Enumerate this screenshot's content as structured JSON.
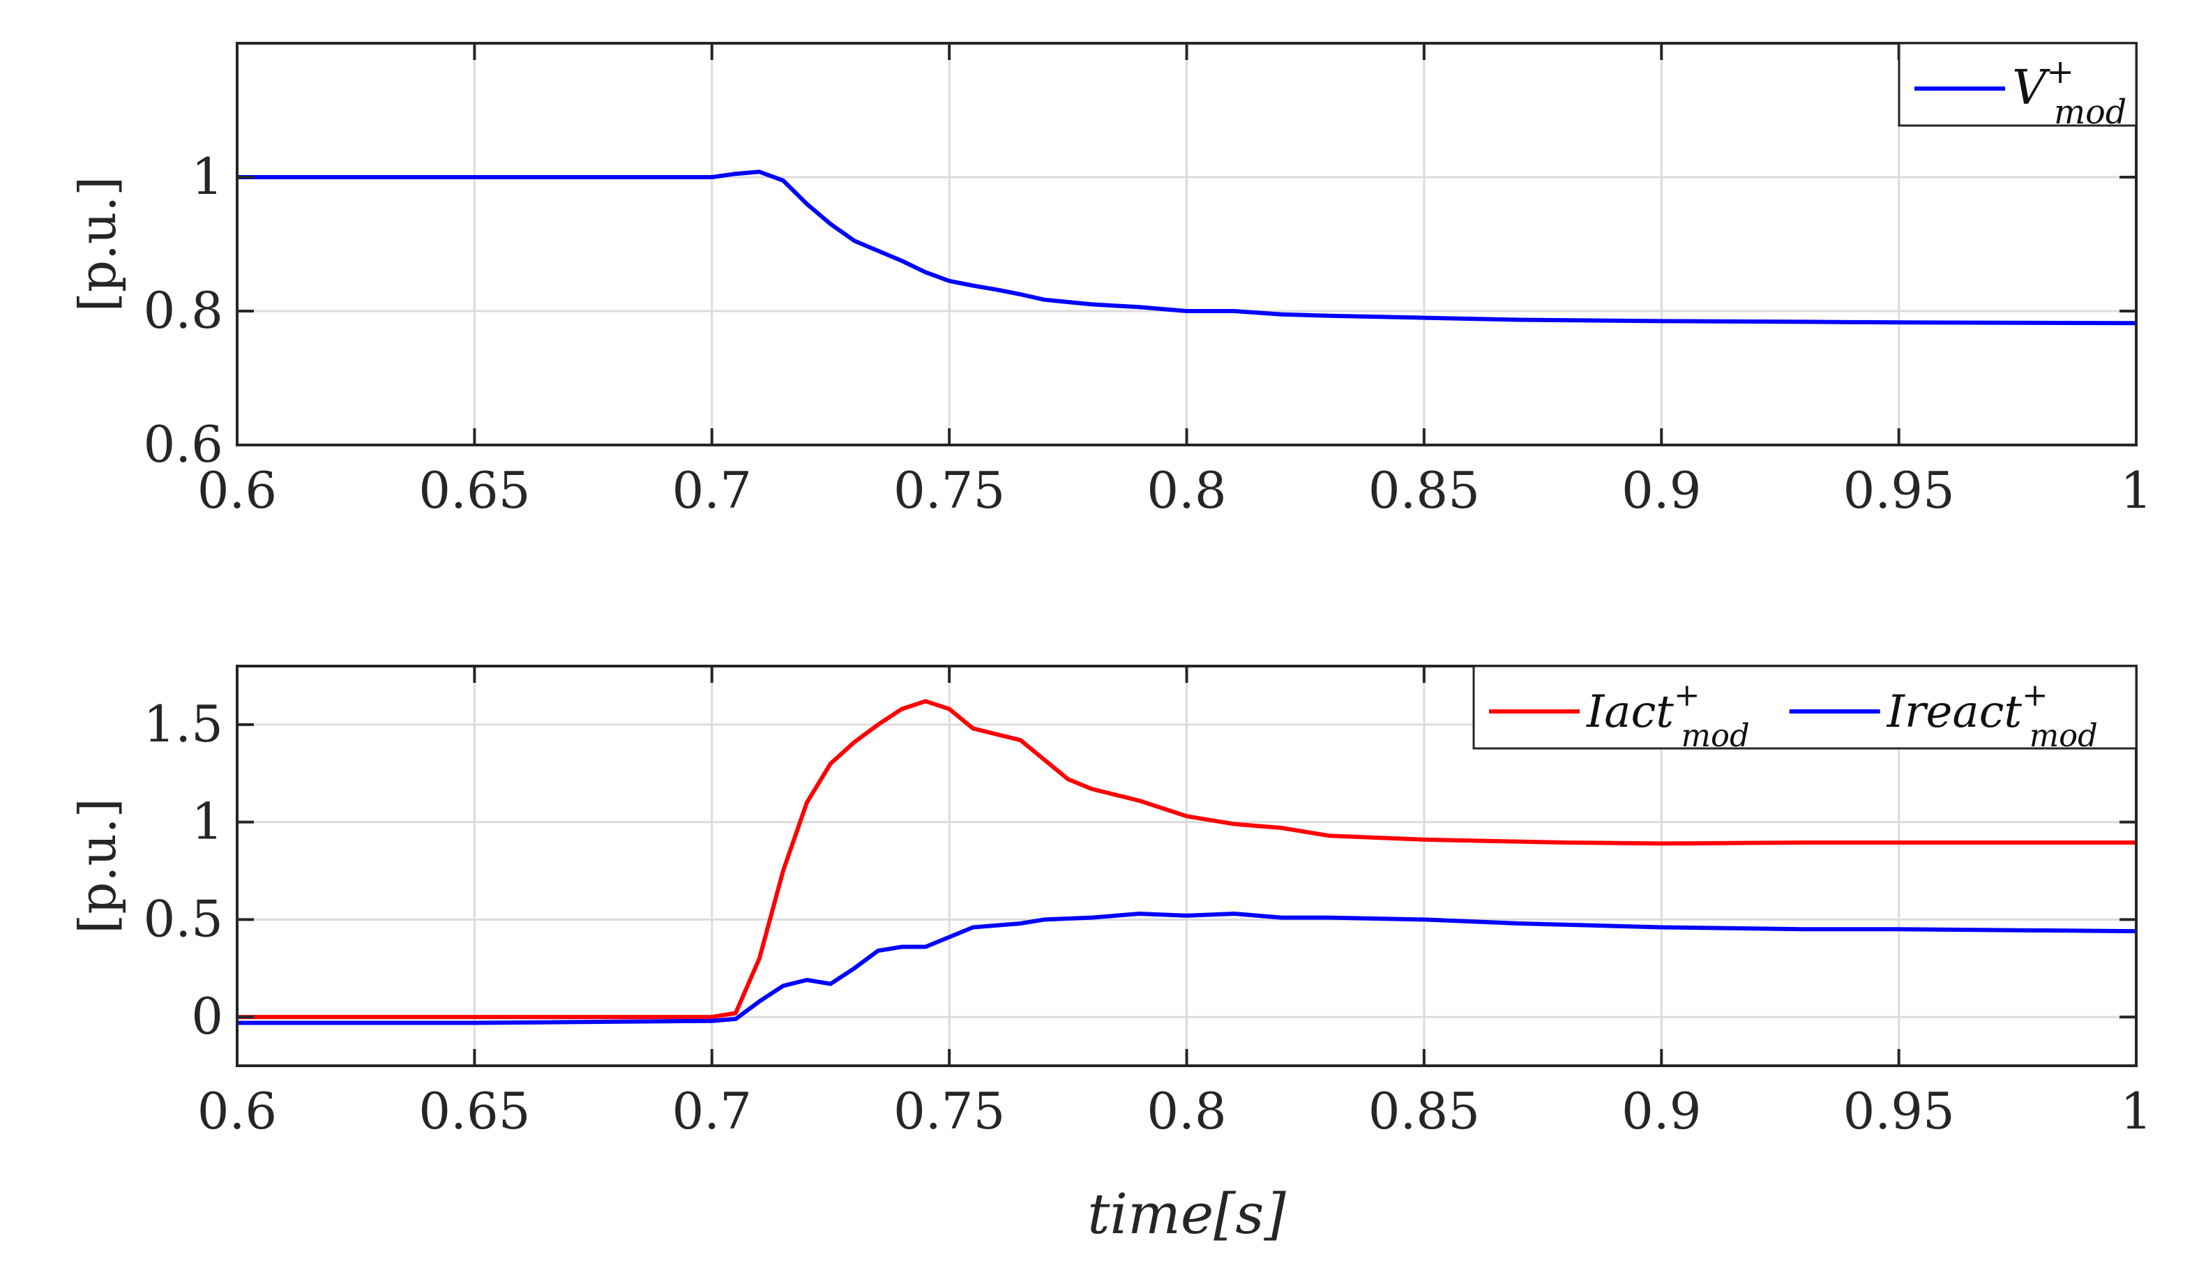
{
  "chart_data": [
    {
      "type": "line",
      "ylabel": "[p.u.]",
      "xlabel": "",
      "xlim": [
        0.6,
        1.0
      ],
      "ylim": [
        0.6,
        1.2
      ],
      "xticks": [
        0.6,
        0.65,
        0.7,
        0.75,
        0.8,
        0.85,
        0.9,
        0.95,
        1.0
      ],
      "xtick_labels": [
        "0.6",
        "0.65",
        "0.7",
        "0.75",
        "0.8",
        "0.85",
        "0.9",
        "0.95",
        "1"
      ],
      "yticks": [
        0.6,
        0.8,
        1.0
      ],
      "ytick_labels": [
        "0.6",
        "0.8",
        "1"
      ],
      "grid": true,
      "legend_position": "top-right",
      "series": [
        {
          "name": "V",
          "sup": "+",
          "sub": "mod",
          "color": "#0000ff",
          "x": [
            0.6,
            0.65,
            0.7,
            0.705,
            0.71,
            0.715,
            0.72,
            0.725,
            0.73,
            0.735,
            0.74,
            0.745,
            0.75,
            0.755,
            0.76,
            0.765,
            0.77,
            0.78,
            0.79,
            0.8,
            0.81,
            0.82,
            0.83,
            0.85,
            0.87,
            0.9,
            0.93,
            0.95,
            1.0
          ],
          "y": [
            1.0,
            1.0,
            1.0,
            1.005,
            1.008,
            0.995,
            0.96,
            0.93,
            0.905,
            0.89,
            0.875,
            0.858,
            0.845,
            0.838,
            0.832,
            0.825,
            0.817,
            0.81,
            0.806,
            0.8,
            0.8,
            0.795,
            0.793,
            0.79,
            0.787,
            0.785,
            0.784,
            0.783,
            0.782
          ]
        }
      ]
    },
    {
      "type": "line",
      "ylabel": "[p.u.]",
      "xlabel": "time[s]",
      "xlim": [
        0.6,
        1.0
      ],
      "ylim": [
        -0.25,
        1.8
      ],
      "xticks": [
        0.6,
        0.65,
        0.7,
        0.75,
        0.8,
        0.85,
        0.9,
        0.95,
        1.0
      ],
      "xtick_labels": [
        "0.6",
        "0.65",
        "0.7",
        "0.75",
        "0.8",
        "0.85",
        "0.9",
        "0.95",
        "1"
      ],
      "yticks": [
        0,
        0.5,
        1.0,
        1.5
      ],
      "ytick_labels": [
        "0",
        "0.5",
        "1",
        "1.5"
      ],
      "grid": true,
      "legend_position": "top-right",
      "series": [
        {
          "name": "Iact",
          "sup": "+",
          "sub": "mod",
          "color": "#ff0000",
          "x": [
            0.6,
            0.65,
            0.7,
            0.705,
            0.71,
            0.715,
            0.72,
            0.725,
            0.73,
            0.735,
            0.74,
            0.745,
            0.75,
            0.755,
            0.76,
            0.765,
            0.77,
            0.775,
            0.78,
            0.79,
            0.8,
            0.81,
            0.82,
            0.83,
            0.84,
            0.85,
            0.86,
            0.88,
            0.9,
            0.93,
            0.95,
            1.0
          ],
          "y": [
            0.0,
            0.0,
            0.0,
            0.02,
            0.3,
            0.75,
            1.1,
            1.3,
            1.41,
            1.5,
            1.58,
            1.62,
            1.58,
            1.48,
            1.45,
            1.42,
            1.32,
            1.22,
            1.17,
            1.11,
            1.03,
            0.99,
            0.97,
            0.93,
            0.92,
            0.91,
            0.905,
            0.895,
            0.89,
            0.895,
            0.895,
            0.895
          ]
        },
        {
          "name": "Ireact",
          "sup": "+",
          "sub": "mod",
          "color": "#0000ff",
          "x": [
            0.6,
            0.65,
            0.7,
            0.705,
            0.71,
            0.715,
            0.72,
            0.725,
            0.73,
            0.735,
            0.74,
            0.745,
            0.75,
            0.755,
            0.76,
            0.765,
            0.77,
            0.78,
            0.79,
            0.8,
            0.81,
            0.82,
            0.83,
            0.85,
            0.87,
            0.9,
            0.93,
            0.95,
            1.0
          ],
          "y": [
            -0.03,
            -0.03,
            -0.02,
            -0.01,
            0.08,
            0.16,
            0.19,
            0.17,
            0.25,
            0.34,
            0.36,
            0.36,
            0.41,
            0.46,
            0.47,
            0.48,
            0.5,
            0.51,
            0.53,
            0.52,
            0.53,
            0.51,
            0.51,
            0.5,
            0.48,
            0.46,
            0.45,
            0.45,
            0.44
          ]
        }
      ]
    }
  ]
}
